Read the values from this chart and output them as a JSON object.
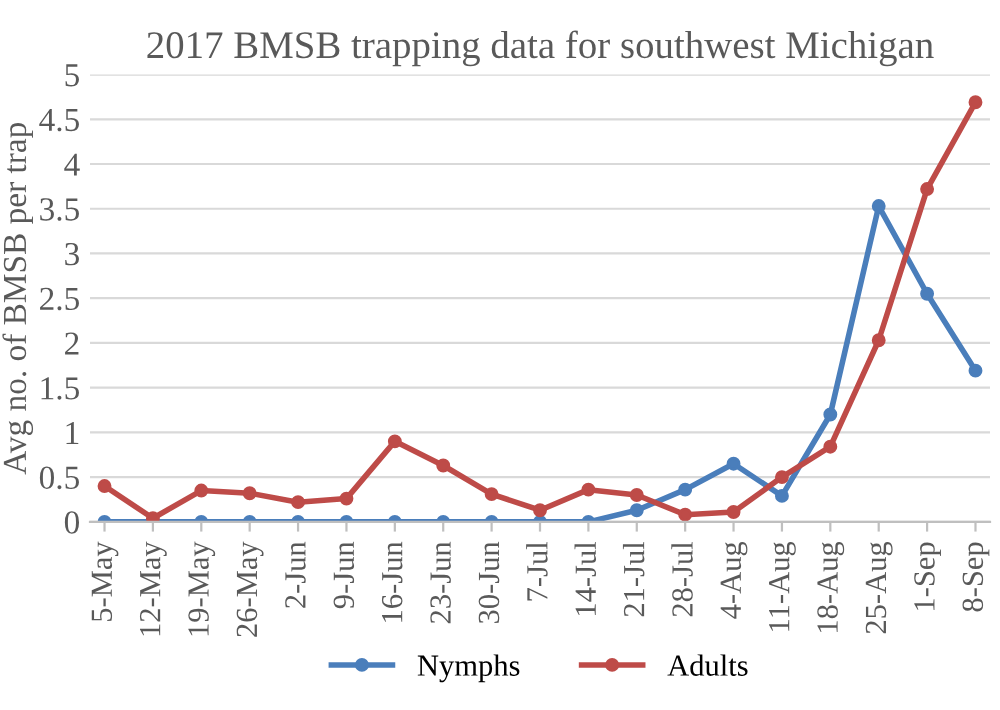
{
  "chart_data": {
    "type": "line",
    "title": "2017 BMSB trapping data for southwest Michigan",
    "ylabel": "Avg no. of BMSB per trap",
    "categories": [
      "5-May",
      "12-May",
      "19-May",
      "26-May",
      "2-Jun",
      "9-Jun",
      "16-Jun",
      "23-Jun",
      "30-Jun",
      "7-Jul",
      "14-Jul",
      "21-Jul",
      "28-Jul",
      "4-Aug",
      "11-Aug",
      "18-Aug",
      "25-Aug",
      "1-Sep",
      "8-Sep"
    ],
    "series": [
      {
        "name": "Nymphs",
        "color": "#4a7ebb",
        "values": [
          0,
          0,
          0,
          0,
          0,
          0,
          0,
          0,
          0,
          0,
          0,
          0.13,
          0.36,
          0.65,
          0.29,
          1.2,
          3.53,
          2.55,
          1.69
        ]
      },
      {
        "name": "Adults",
        "color": "#be4b48",
        "values": [
          0.4,
          0.04,
          0.35,
          0.32,
          0.22,
          0.26,
          0.9,
          0.63,
          0.31,
          0.13,
          0.36,
          0.3,
          0.08,
          0.11,
          0.5,
          0.84,
          2.03,
          3.72,
          4.69
        ]
      }
    ],
    "ylim": [
      0,
      5
    ],
    "yticks": [
      0,
      0.5,
      1,
      1.5,
      2,
      2.5,
      3,
      3.5,
      4,
      4.5,
      5
    ],
    "grid": "y",
    "legend": "bottom",
    "marker": "circle",
    "line_style": "solid"
  }
}
